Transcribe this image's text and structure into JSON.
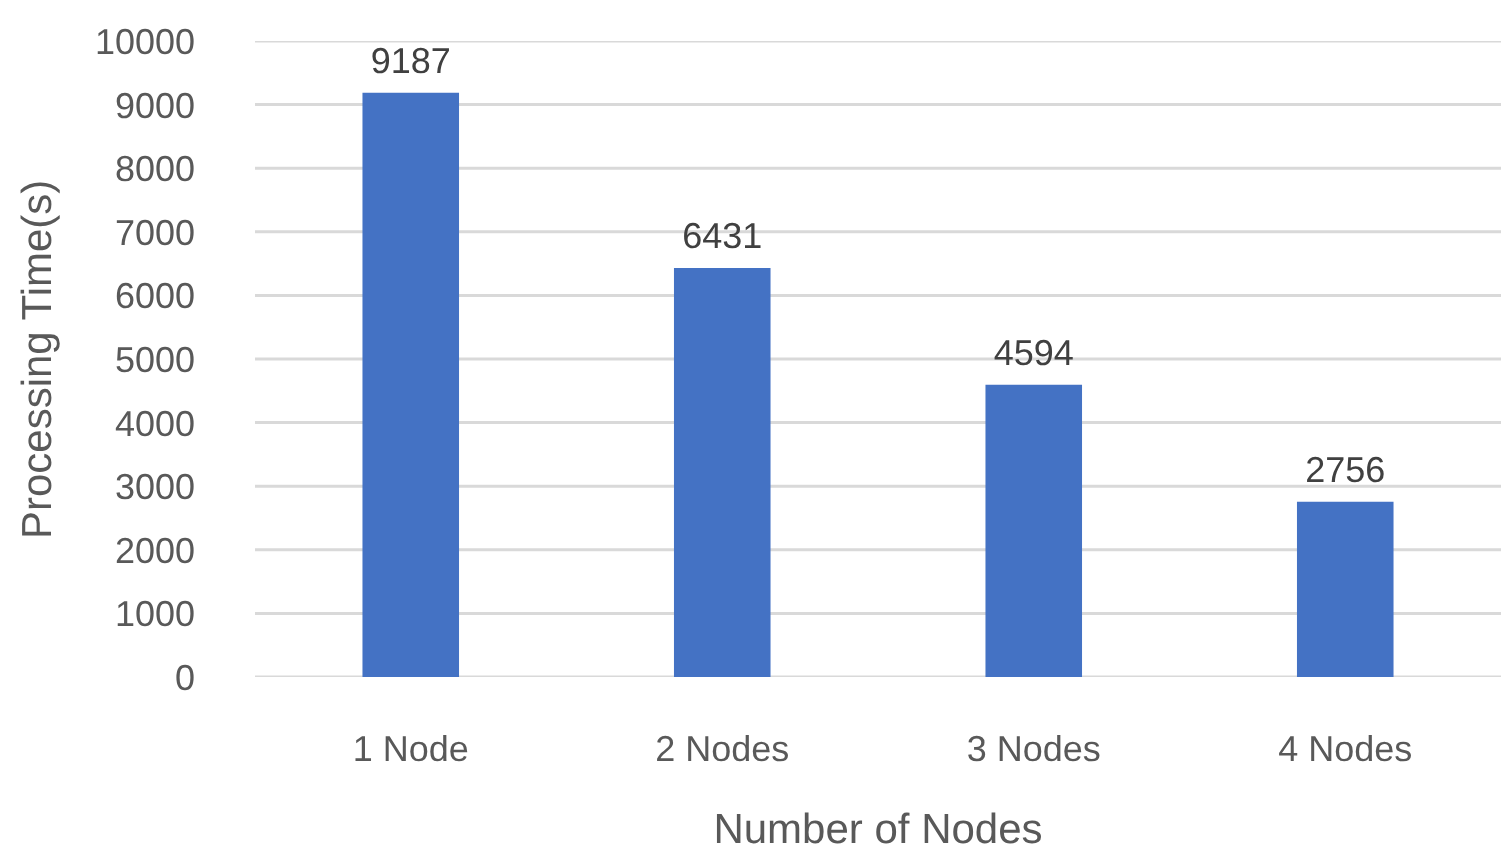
{
  "chart_data": {
    "type": "bar",
    "xlabel": "Number of Nodes",
    "ylabel": "Processing Time(s)",
    "categories": [
      "1 Node",
      "2 Nodes",
      "3 Nodes",
      "4 Nodes"
    ],
    "values": [
      9187,
      6431,
      4594,
      2756
    ],
    "color": "#4472c4",
    "ylim": [
      0,
      10000
    ],
    "yticks": [
      0,
      1000,
      2000,
      3000,
      4000,
      5000,
      6000,
      7000,
      8000,
      9000,
      10000
    ],
    "grid": "y",
    "data_labels": true
  }
}
